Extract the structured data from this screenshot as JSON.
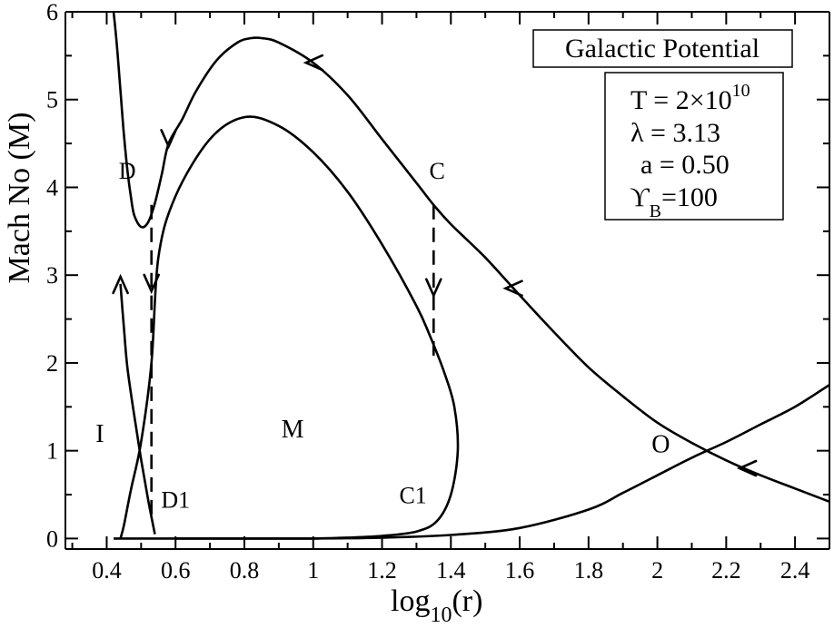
{
  "chart_data": {
    "type": "line",
    "title": "",
    "xlabel": "log",
    "xlabel_sub": "10",
    "xlabel_rest": "(r)",
    "ylabel": "Mach No (M)",
    "xlim": [
      0.28,
      2.5
    ],
    "ylim": [
      -0.12,
      6
    ],
    "x_ticks": [
      "0.4",
      "0.6",
      "0.8",
      "1",
      "1.2",
      "1.4",
      "1.6",
      "1.8",
      "2",
      "2.2",
      "2.4"
    ],
    "y_ticks": [
      "0",
      "1",
      "2",
      "3",
      "4",
      "5",
      "6"
    ],
    "legend": {
      "title": "Galactic Potential",
      "line1": "T = 2×10",
      "line1_sup": "10",
      "line2": "λ = 3.13",
      "line3": "a = 0.50",
      "line4": "ϒ",
      "line4_sub": "B",
      "line4_rest": "=100"
    },
    "region_labels": [
      {
        "text": "I",
        "x": 0.38,
        "y": 1.1
      },
      {
        "text": "M",
        "x": 0.94,
        "y": 1.15
      },
      {
        "text": "O",
        "x": 2.01,
        "y": 0.98
      }
    ],
    "point_labels": [
      {
        "text": "D",
        "x": 0.46,
        "y": 4.1
      },
      {
        "text": "C",
        "x": 1.36,
        "y": 4.1
      },
      {
        "text": "D1",
        "x": 0.6,
        "y": 0.35
      },
      {
        "text": "C1",
        "x": 1.29,
        "y": 0.4
      }
    ],
    "series": [
      {
        "id": "outer-loop",
        "x": [
          2.5,
          2.4,
          2.3,
          2.2,
          2.1,
          2.0,
          1.9,
          1.8,
          1.7,
          1.6,
          1.5,
          1.4,
          1.35,
          1.3,
          1.2,
          1.1,
          1.0,
          0.9,
          0.85,
          0.82,
          0.78,
          0.72,
          0.66,
          0.62,
          0.58,
          0.56,
          0.54,
          0.52,
          0.5,
          0.48,
          0.47,
          0.46,
          0.45,
          0.44,
          0.43,
          0.42
        ],
        "y": [
          0.42,
          0.57,
          0.72,
          0.89,
          1.09,
          1.32,
          1.62,
          1.95,
          2.35,
          2.77,
          3.2,
          3.58,
          3.8,
          4.05,
          4.55,
          5.05,
          5.42,
          5.65,
          5.7,
          5.7,
          5.65,
          5.45,
          5.1,
          4.78,
          4.5,
          4.15,
          3.82,
          3.6,
          3.55,
          3.68,
          3.9,
          4.2,
          4.6,
          5.1,
          5.6,
          6.0
        ]
      },
      {
        "id": "inner-loop-M",
        "x": [
          0.42,
          0.5,
          0.55,
          0.6,
          0.7,
          0.8,
          0.9,
          1.0,
          1.1,
          1.2,
          1.3,
          1.36,
          1.4,
          1.42,
          1.41,
          1.38,
          1.34,
          1.3,
          1.2,
          1.1,
          1.0,
          0.9,
          0.8,
          0.7,
          0.6,
          0.55,
          0.53,
          0.5,
          0.47,
          0.45,
          0.44
        ],
        "y": [
          0.0,
          0.0,
          0.0,
          0.0,
          0.0,
          0.0,
          0.0,
          0.0,
          0.01,
          0.03,
          0.08,
          0.2,
          0.5,
          1.0,
          1.5,
          1.9,
          2.3,
          2.65,
          3.35,
          3.95,
          4.4,
          4.7,
          4.8,
          4.55,
          3.9,
          3.2,
          2.0,
          1.1,
          0.55,
          0.15,
          0.0
        ]
      },
      {
        "id": "inner-branch-I",
        "x": [
          0.44,
          0.45,
          0.46,
          0.48,
          0.5,
          0.52,
          0.54
        ],
        "y": [
          2.9,
          2.4,
          1.95,
          1.4,
          0.9,
          0.45,
          0.05
        ]
      },
      {
        "id": "outer-branch-O",
        "x": [
          0.6,
          1.0,
          1.2,
          1.4,
          1.6,
          1.8,
          1.9,
          2.0,
          2.1,
          2.2,
          2.3,
          2.4,
          2.5
        ],
        "y": [
          0.0,
          0.0,
          0.01,
          0.04,
          0.12,
          0.33,
          0.52,
          0.72,
          0.92,
          1.1,
          1.3,
          1.5,
          1.75
        ]
      },
      {
        "id": "shock-D-D1",
        "x": [
          0.53,
          0.53
        ],
        "y": [
          3.8,
          0.25
        ]
      },
      {
        "id": "shock-C-C1",
        "x": [
          1.35,
          1.35
        ],
        "y": [
          3.8,
          2.0
        ]
      }
    ],
    "arrows": [
      {
        "x": 1.0,
        "y": 5.42,
        "dir": "left"
      },
      {
        "x": 0.58,
        "y": 4.55,
        "dir": "down"
      },
      {
        "x": 1.58,
        "y": 2.85,
        "dir": "left"
      },
      {
        "x": 2.26,
        "y": 0.8,
        "dir": "left"
      },
      {
        "x": 0.44,
        "y": 2.9,
        "dir": "up"
      },
      {
        "x": 0.53,
        "y": 2.9,
        "dir": "down"
      },
      {
        "x": 1.35,
        "y": 2.85,
        "dir": "down"
      }
    ]
  }
}
